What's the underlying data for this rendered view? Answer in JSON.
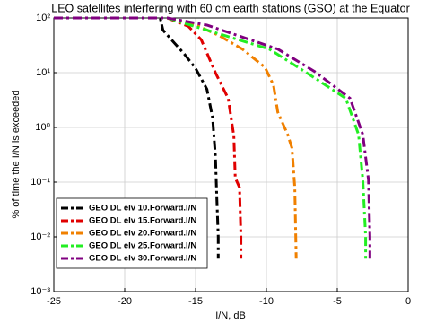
{
  "chart_data": {
    "type": "line",
    "title": "LEO satellites interfering with 60 cm earth stations (GSO) at the Equator",
    "x_label": "I/N, dB",
    "y_label": "% of time the I/N is exceeded",
    "xlim": [
      -25,
      0
    ],
    "xticks": [
      -25,
      -20,
      -15,
      -10,
      -5,
      0
    ],
    "ylim": [
      0.001,
      100
    ],
    "yticks": [
      {
        "value": 0.001,
        "label": "10⁻³"
      },
      {
        "value": 0.01,
        "label": "10⁻²"
      },
      {
        "value": 0.1,
        "label": "10⁻¹"
      },
      {
        "value": 1,
        "label": "10⁰"
      },
      {
        "value": 10,
        "label": "10¹"
      },
      {
        "value": 100,
        "label": "10²"
      }
    ],
    "log_y": true,
    "grid": true,
    "legend": "lower left",
    "series": [
      {
        "name": "GEO DL elv 10.Forward.I/N",
        "color": "#000000",
        "x": [
          -25,
          -17.5,
          -17.3,
          -16.5,
          -15.8,
          -15,
          -14.2,
          -13.8,
          -13.6,
          -13.5,
          -13.4,
          -13.4
        ],
        "values": [
          100,
          100,
          60,
          35,
          22,
          12,
          5,
          1.5,
          0.3,
          0.05,
          0.01,
          0.004
        ]
      },
      {
        "name": "GEO DL elv 15.Forward.I/N",
        "color": "#e00000",
        "x": [
          -25,
          -17,
          -15.5,
          -14.6,
          -13.6,
          -12.7,
          -12.3,
          -12.2,
          -11.9,
          -11.8,
          -11.8
        ],
        "values": [
          100,
          100,
          70,
          40,
          10,
          3.4,
          0.7,
          0.12,
          0.08,
          0.01,
          0.004
        ]
      },
      {
        "name": "GEO DL elv 20.Forward.I/N",
        "color": "#f08000",
        "x": [
          -25,
          -17,
          -15,
          -13.3,
          -11.7,
          -10.1,
          -9.5,
          -9.2,
          -8.5,
          -8.2,
          -8.0,
          -7.9
        ],
        "values": [
          100,
          100,
          75,
          47,
          27,
          12.5,
          5.9,
          1.9,
          0.74,
          0.42,
          0.08,
          0.004
        ]
      },
      {
        "name": "GEO DL elv 25.Forward.I/N",
        "color": "#22ee22",
        "x": [
          -25,
          -17,
          -14.9,
          -9.8,
          -7.3,
          -4.4,
          -3.5,
          -3.2,
          -3.0,
          -3.0
        ],
        "values": [
          100,
          100,
          68,
          27,
          10.5,
          3.4,
          0.74,
          0.11,
          0.01,
          0.004
        ]
      },
      {
        "name": "GEO DL elv 30.Forward.I/N",
        "color": "#800080",
        "x": [
          -25,
          -17,
          -14.2,
          -9.2,
          -6.6,
          -4.1,
          -3.2,
          -2.8,
          -2.7,
          -2.7
        ],
        "values": [
          100,
          100,
          74,
          27,
          10.5,
          3.4,
          0.74,
          0.11,
          0.01,
          0.004
        ]
      }
    ]
  }
}
